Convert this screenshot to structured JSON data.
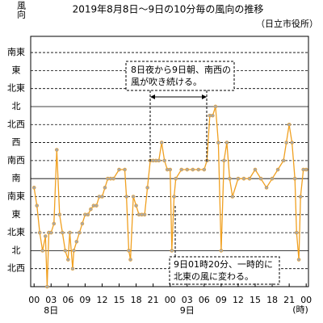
{
  "chart_data": {
    "type": "line",
    "title": "2019年8月8日～9日の10分毎の風向の推移",
    "source": "（日立市役所）",
    "y_label": "風向",
    "x_unit": "(時)",
    "days": [
      "8日",
      "9日"
    ],
    "color": "#f0a020",
    "marker_color": "#a8a8a8",
    "grid": true,
    "xlim": [
      -0.6,
      48.4
    ],
    "ylim": [
      -1,
      12.9
    ],
    "xticks": [
      {
        "value": 0,
        "label": "00"
      },
      {
        "value": 3,
        "label": "03"
      },
      {
        "value": 6,
        "label": "06"
      },
      {
        "value": 9,
        "label": "09"
      },
      12,
      15,
      18,
      21,
      {
        "value": 24,
        "label": "00"
      },
      {
        "value": 27,
        "label": "03"
      },
      {
        "value": 30,
        "label": "06"
      },
      {
        "value": 33,
        "label": "09"
      },
      {
        "value": 36,
        "label": "12"
      },
      {
        "value": 39,
        "label": "15"
      },
      {
        "value": 42,
        "label": "18"
      },
      {
        "value": 45,
        "label": "21"
      },
      {
        "value": 48,
        "label": "00"
      }
    ],
    "yticks": [
      {
        "value": 0,
        "label": "北西"
      },
      {
        "value": 1,
        "label": "北"
      },
      {
        "value": 2,
        "label": "北東"
      },
      {
        "value": 3,
        "label": "東"
      },
      {
        "value": 4,
        "label": "南東"
      },
      {
        "value": 5,
        "label": "南"
      },
      {
        "value": 6,
        "label": "南西"
      },
      {
        "value": 7,
        "label": "西"
      },
      {
        "value": 8,
        "label": "北西"
      },
      {
        "value": 9,
        "label": "北"
      },
      {
        "value": 10,
        "label": "北東"
      },
      {
        "value": 11,
        "label": "東"
      },
      {
        "value": 12,
        "label": "南東"
      }
    ],
    "x": [
      0,
      0.5,
      1,
      1.5,
      2,
      2.3,
      2.6,
      3,
      3.5,
      4,
      4.5,
      5,
      5.5,
      6,
      6.3,
      6.8,
      7,
      7.5,
      8,
      8.5,
      9,
      9.5,
      10,
      10.5,
      11,
      11.5,
      12,
      12.5,
      13,
      13.5,
      14,
      15,
      16,
      16.3,
      16.7,
      17,
      17.5,
      18,
      18.5,
      19,
      19.5,
      20,
      20.5,
      21,
      21.5,
      22,
      22.5,
      23,
      23.5,
      24,
      24.3,
      24.7,
      25,
      26,
      27,
      28,
      29,
      30,
      30.5,
      31,
      31.5,
      32,
      32.5,
      33,
      33.5,
      34,
      34.5,
      35,
      36,
      37,
      38,
      39,
      40,
      41,
      42,
      43,
      44,
      44.5,
      45,
      45.5,
      46,
      46.3,
      46.7,
      47,
      47.5,
      48
    ],
    "values": [
      4.5,
      3.5,
      2,
      1,
      1.8,
      -1,
      2,
      2,
      2.5,
      6.6,
      3,
      2,
      1,
      0.5,
      2,
      0,
      1,
      1.5,
      2,
      2.5,
      3,
      3,
      3.3,
      3.5,
      3.5,
      4,
      4,
      4.5,
      5,
      5,
      5,
      5.5,
      5.5,
      4,
      1,
      0.5,
      4,
      3.5,
      3,
      3,
      3,
      4.5,
      6,
      6,
      6,
      6,
      7,
      6,
      5.5,
      5.5,
      1,
      4,
      5,
      5.5,
      5.5,
      5.5,
      5.5,
      5.5,
      6,
      8.5,
      8.5,
      9,
      7,
      1,
      6,
      7,
      5,
      4,
      5,
      5,
      5,
      5.5,
      5,
      4.5,
      5,
      5.5,
      6,
      7,
      8,
      7,
      5,
      2,
      0.5,
      4,
      5.5,
      5.5
    ],
    "annotations": [
      {
        "lines": [
          "8日夜から9日朝、南西の",
          "風が吹き続ける。"
        ]
      },
      {
        "lines": [
          "9日01時20分、一時的に",
          "北東の風に変わる。"
        ]
      }
    ]
  }
}
